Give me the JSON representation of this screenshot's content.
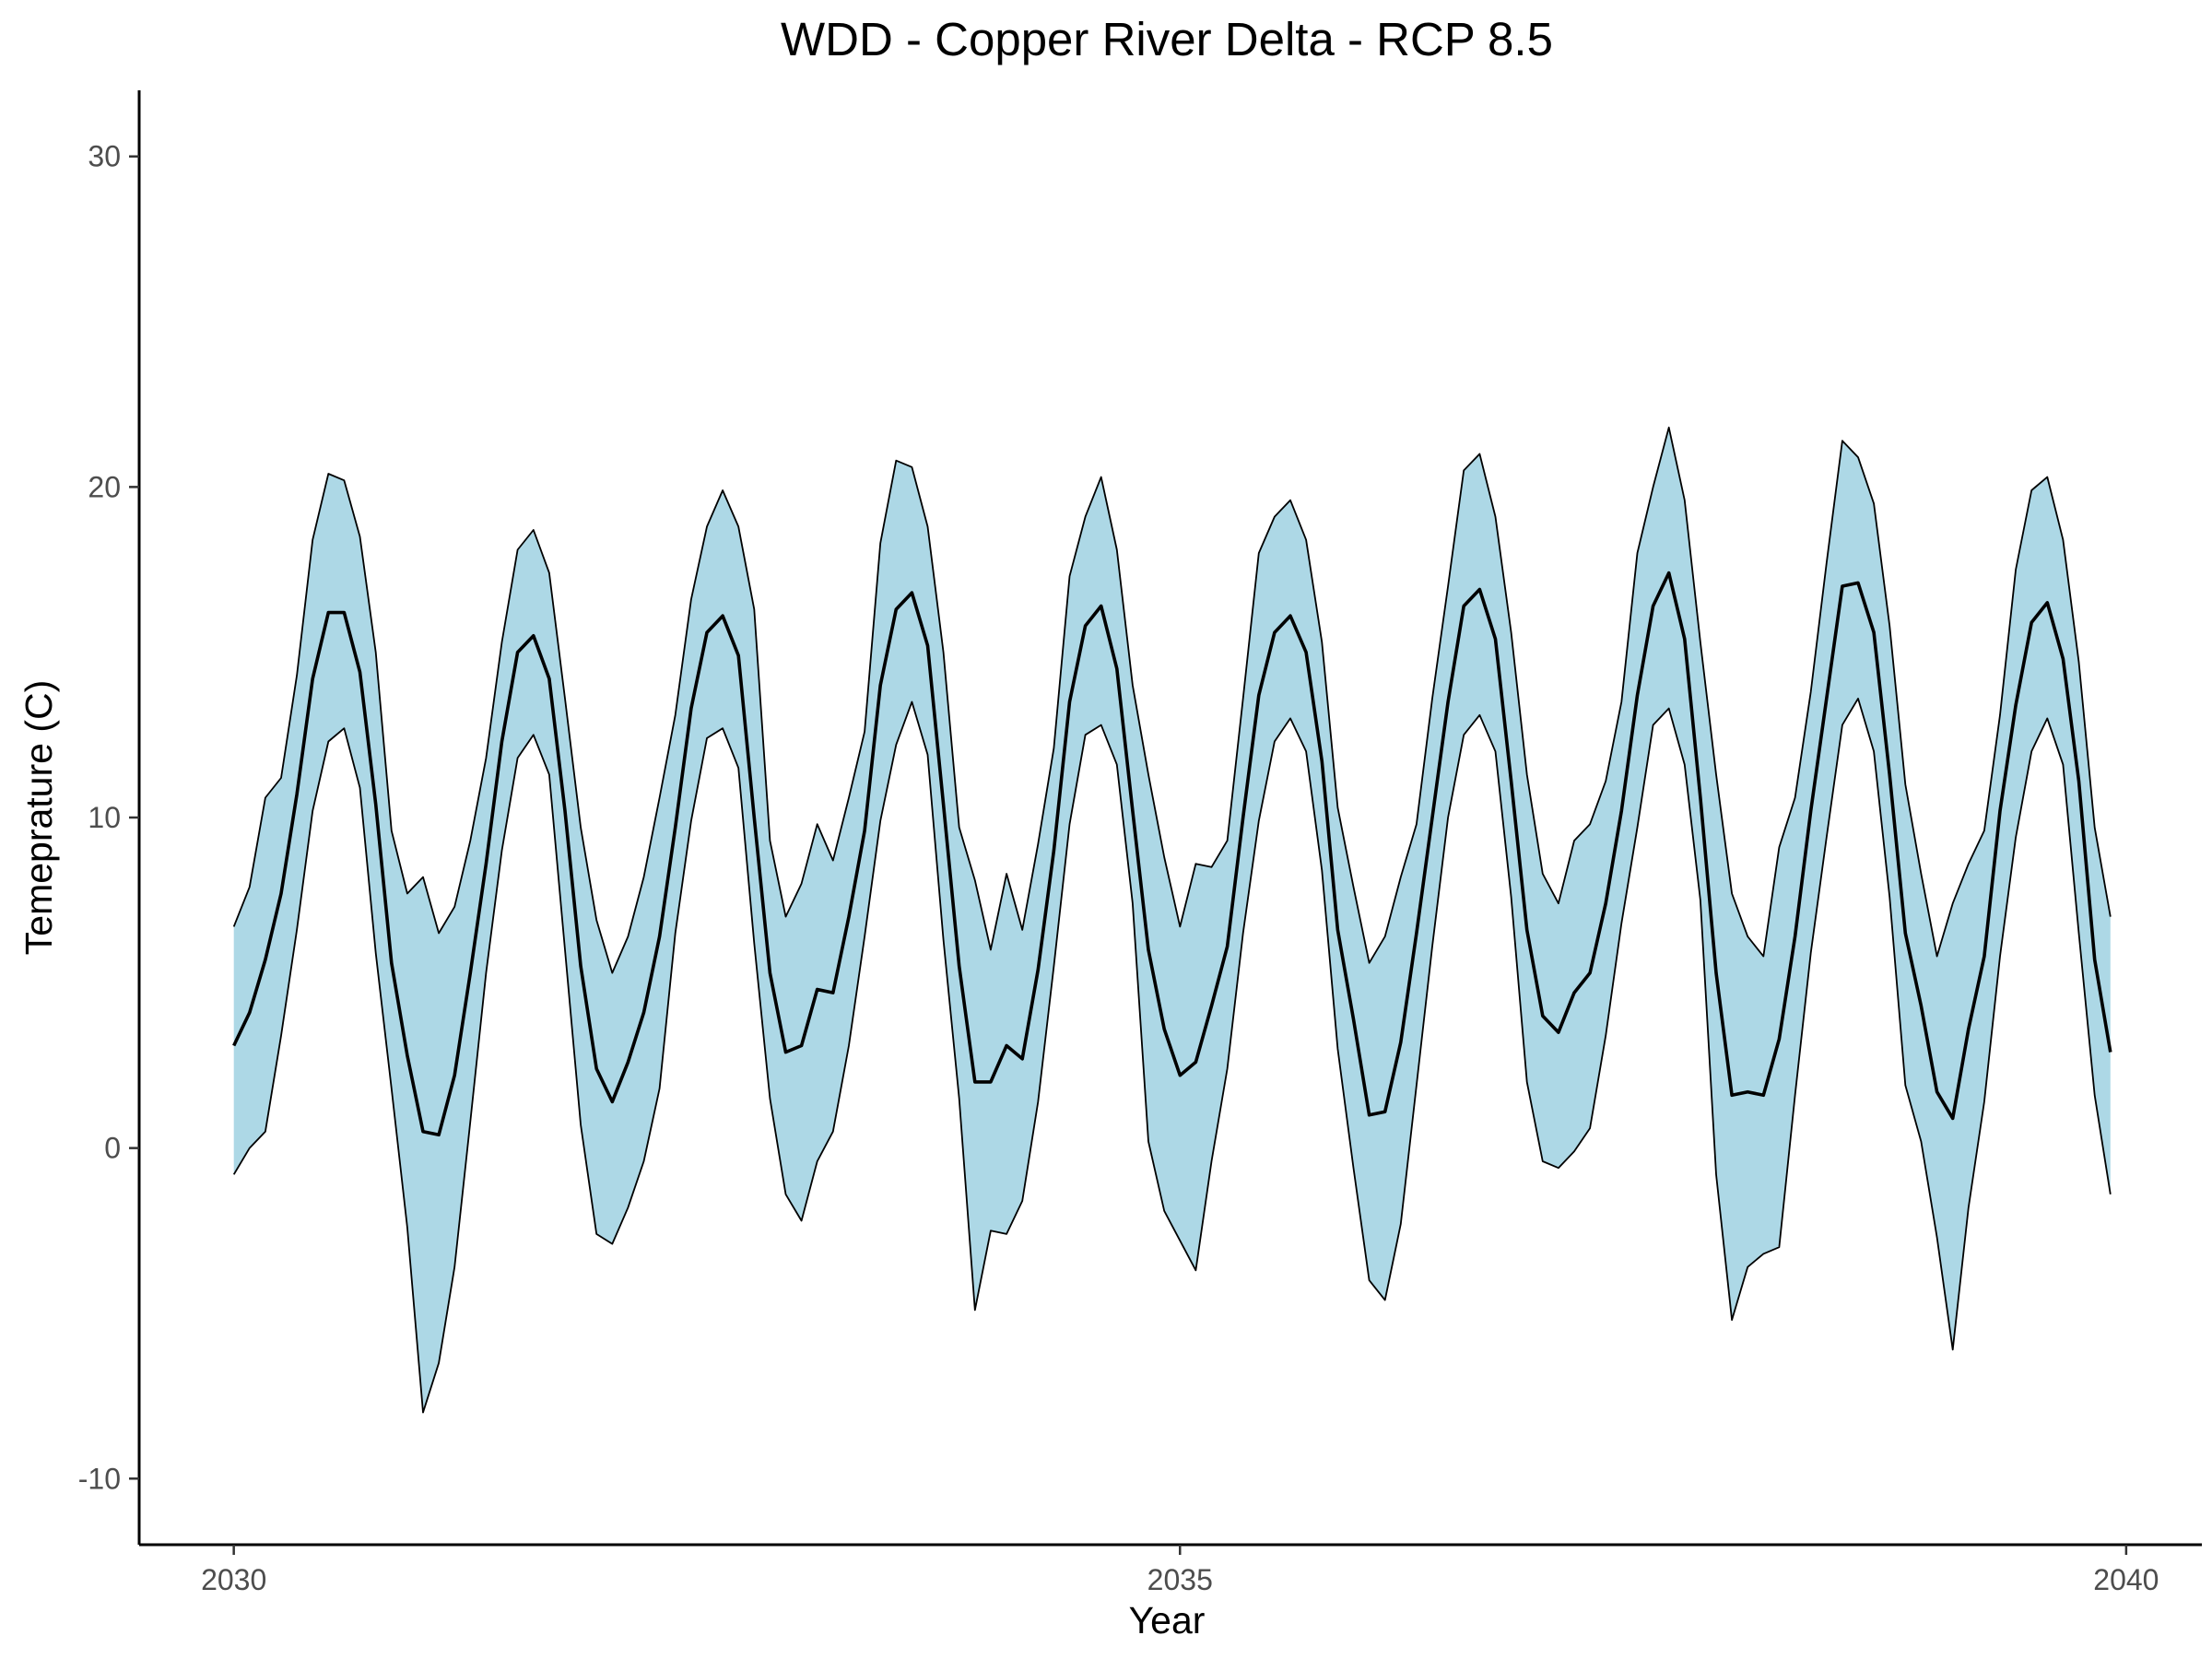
{
  "chart_data": {
    "type": "area",
    "title": "WDD - Copper River Delta - RCP 8.5",
    "xlabel": "Year",
    "ylabel": "Temeprature (C)",
    "xlim": [
      2029.5,
      2040.4
    ],
    "ylim": [
      -12,
      32
    ],
    "xticks": [
      2030,
      2035,
      2040
    ],
    "xtick_labels": [
      "2030",
      "2035",
      "2040"
    ],
    "yticks": [
      -10,
      0,
      10,
      20,
      30
    ],
    "ytick_labels": [
      "-10",
      "0",
      "10",
      "20",
      "30"
    ],
    "grid": false,
    "legend": "none",
    "colors": {
      "ribbon_fill": "#add8e6",
      "line": "#000000"
    },
    "x_step_months": 1,
    "x_start": 2030.0,
    "series": [
      {
        "values": [
          3.1,
          4.1,
          5.7,
          7.7,
          10.7,
          14.2,
          16.2,
          16.2,
          14.4,
          10.4,
          5.6,
          2.8,
          0.5,
          0.4,
          2.2,
          5.3,
          8.6,
          12.3,
          15.0,
          15.5,
          14.2,
          10.2,
          5.5,
          2.4,
          1.4,
          2.6,
          4.1,
          6.4,
          9.7,
          13.3,
          15.6,
          16.1,
          14.9,
          10.0,
          5.3,
          2.9,
          3.1,
          4.8,
          4.7,
          7.0,
          9.6,
          14.0,
          16.3,
          16.8,
          15.2,
          10.4,
          5.5,
          2.0,
          2.0,
          3.1,
          2.7,
          5.4,
          9.0,
          13.5,
          15.8,
          16.4,
          14.5,
          10.2,
          6.0,
          3.6,
          2.2,
          2.6,
          4.3,
          6.1,
          10.0,
          13.7,
          15.6,
          16.1,
          15.0,
          11.7,
          6.6,
          3.9,
          1.0,
          1.1,
          3.2,
          6.5,
          10.0,
          13.5,
          16.4,
          16.9,
          15.4,
          11.1,
          6.6,
          4.0,
          3.5,
          4.7,
          5.3,
          7.4,
          10.2,
          13.7,
          16.4,
          17.4,
          15.4,
          10.6,
          5.3,
          1.6,
          1.7,
          1.6,
          3.3,
          6.4,
          10.2,
          13.6,
          17.0,
          17.1,
          15.6,
          11.3,
          6.5,
          4.3,
          1.7,
          0.9,
          3.6,
          5.8,
          10.2,
          13.4,
          15.9,
          16.5,
          14.8,
          11.1,
          5.7,
          2.9
        ]
      },
      {
        "values": [
          6.7,
          7.9,
          10.6,
          11.2,
          14.3,
          18.4,
          20.4,
          20.2,
          18.5,
          15.0,
          9.6,
          7.7,
          8.2,
          6.5,
          7.3,
          9.3,
          11.8,
          15.3,
          18.1,
          18.7,
          17.4,
          13.6,
          9.7,
          6.9,
          5.3,
          6.4,
          8.2,
          10.6,
          13.1,
          16.6,
          18.8,
          19.9,
          18.8,
          16.3,
          9.3,
          7.0,
          8.0,
          9.8,
          8.7,
          10.6,
          12.6,
          18.3,
          20.8,
          20.6,
          18.8,
          15.0,
          9.7,
          8.1,
          6.0,
          8.3,
          6.6,
          9.2,
          12.1,
          17.3,
          19.1,
          20.3,
          18.1,
          14.0,
          11.3,
          8.8,
          6.7,
          8.6,
          8.5,
          9.3,
          13.6,
          18.0,
          19.1,
          19.6,
          18.4,
          15.3,
          10.3,
          7.9,
          5.6,
          6.4,
          8.2,
          9.8,
          13.6,
          17.0,
          20.5,
          21.0,
          19.1,
          15.6,
          11.3,
          8.3,
          7.4,
          9.3,
          9.8,
          11.1,
          13.5,
          18.0,
          20.0,
          21.8,
          19.6,
          15.3,
          11.3,
          7.7,
          6.4,
          5.8,
          9.1,
          10.6,
          13.8,
          17.7,
          21.4,
          20.9,
          19.5,
          15.8,
          11.0,
          8.3,
          5.8,
          7.4,
          8.6,
          9.6,
          13.1,
          17.5,
          19.9,
          20.3,
          18.4,
          14.7,
          9.7,
          7.0
        ]
      },
      {
        "values": [
          -0.8,
          0.0,
          0.5,
          3.4,
          6.6,
          10.2,
          12.3,
          12.7,
          10.9,
          5.9,
          1.8,
          -2.4,
          -8.0,
          -6.5,
          -3.6,
          0.8,
          5.3,
          9.0,
          11.8,
          12.5,
          11.3,
          6.0,
          0.7,
          -2.6,
          -2.9,
          -1.8,
          -0.4,
          1.8,
          6.5,
          9.9,
          12.4,
          12.7,
          11.5,
          6.2,
          1.5,
          -1.4,
          -2.2,
          -0.4,
          0.5,
          3.1,
          6.4,
          9.9,
          12.2,
          13.5,
          11.9,
          6.3,
          1.5,
          -4.9,
          -2.5,
          -2.6,
          -1.6,
          1.4,
          5.5,
          9.8,
          12.5,
          12.8,
          11.6,
          7.4,
          0.2,
          -1.9,
          -2.8,
          -3.7,
          -0.4,
          2.4,
          6.5,
          9.9,
          12.3,
          13.0,
          12.0,
          8.4,
          3.0,
          -0.6,
          -4.0,
          -4.6,
          -2.3,
          1.9,
          6.1,
          10.0,
          12.5,
          13.1,
          12.0,
          7.6,
          2.0,
          -0.4,
          -0.6,
          -0.1,
          0.6,
          3.4,
          6.8,
          9.7,
          12.8,
          13.3,
          11.6,
          7.5,
          -0.8,
          -5.2,
          -3.6,
          -3.2,
          -3.0,
          1.6,
          5.9,
          9.4,
          12.8,
          13.6,
          12.0,
          7.6,
          1.9,
          0.2,
          -2.7,
          -6.1,
          -1.8,
          1.4,
          5.8,
          9.4,
          12.0,
          13.0,
          11.6,
          6.5,
          1.6,
          -1.4
        ]
      }
    ]
  }
}
